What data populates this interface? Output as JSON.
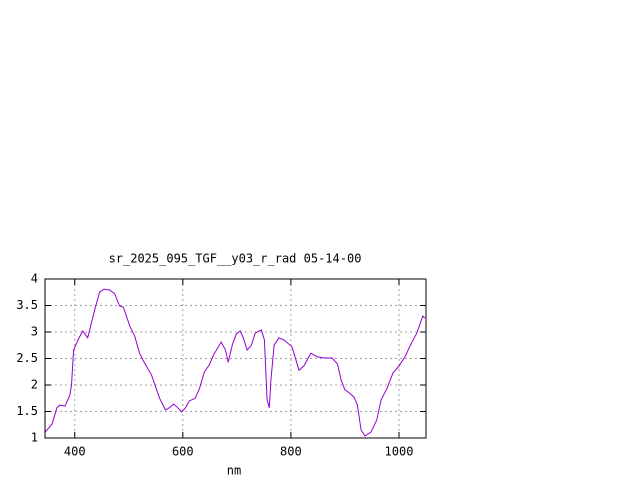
{
  "chart_data": {
    "type": "line",
    "title": "sr_2025_095_TGF__y03_r_rad 05-14-00",
    "x_label": "nm",
    "grid": true,
    "xlim": [
      345,
      1050
    ],
    "ylim": [
      1,
      4
    ],
    "xticks": [
      400,
      600,
      800,
      1000
    ],
    "yticks": [
      1,
      1.5,
      2,
      2.5,
      3,
      3.5,
      4
    ],
    "series": [
      {
        "color": "#9400d3",
        "x": [
          345,
          358,
          367,
          372,
          382,
          391,
          394,
          398,
          406,
          415,
          424,
          437,
          446,
          454,
          465,
          474,
          483,
          490,
          502,
          511,
          520,
          529,
          542,
          557,
          568,
          575,
          583,
          590,
          598,
          605,
          612,
          623,
          631,
          640,
          649,
          657,
          671,
          679,
          684,
          692,
          699,
          706,
          712,
          719,
          727,
          734,
          745,
          751,
          756,
          760,
          763,
          769,
          778,
          787,
          802,
          815,
          824,
          837,
          849,
          862,
          876,
          886,
          893,
          900,
          908,
          917,
          923,
          930,
          937,
          948,
          959,
          967,
          978,
          989,
          1000,
          1011,
          1022,
          1033,
          1044,
          1048
        ],
        "values": [
          1.11,
          1.26,
          1.57,
          1.62,
          1.6,
          1.81,
          2.0,
          2.66,
          2.85,
          3.02,
          2.89,
          3.42,
          3.75,
          3.81,
          3.79,
          3.72,
          3.49,
          3.47,
          3.11,
          2.92,
          2.6,
          2.42,
          2.19,
          1.75,
          1.53,
          1.57,
          1.64,
          1.58,
          1.49,
          1.57,
          1.7,
          1.75,
          1.94,
          2.25,
          2.38,
          2.57,
          2.81,
          2.66,
          2.43,
          2.77,
          2.96,
          3.02,
          2.89,
          2.66,
          2.75,
          2.98,
          3.04,
          2.85,
          1.72,
          1.57,
          2.09,
          2.75,
          2.89,
          2.85,
          2.72,
          2.28,
          2.36,
          2.6,
          2.53,
          2.51,
          2.51,
          2.4,
          2.09,
          1.91,
          1.85,
          1.77,
          1.62,
          1.15,
          1.04,
          1.11,
          1.34,
          1.72,
          1.94,
          2.23,
          2.36,
          2.53,
          2.77,
          2.98,
          3.3,
          3.26
        ]
      }
    ]
  }
}
